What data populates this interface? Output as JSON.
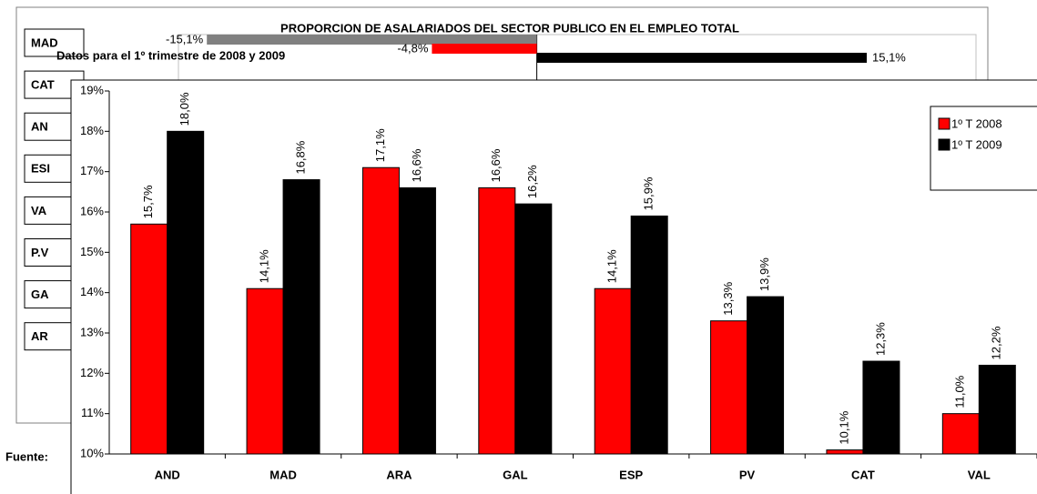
{
  "chart_data": [
    {
      "type": "hbar",
      "title": "PROPORCION DE ASALARIADOS DEL SECTOR PUBLICO EN EL EMPLEO TOTAL",
      "subtitle": "Datos para el 1º trimestre de 2008 y 2009",
      "note": "Fuente:",
      "categories": [
        "MAD",
        "CAT",
        "AN",
        "ESI",
        "VA",
        "P.V",
        "GA",
        "AR"
      ],
      "xlim": [
        -16.4,
        20.1
      ],
      "series": [
        {
          "color": "#808080",
          "values": [
            -15.1,
            null,
            null,
            null,
            null,
            null,
            null,
            null
          ],
          "value_labels": [
            "-15,1%",
            null,
            null,
            null,
            null,
            null,
            null,
            null
          ]
        },
        {
          "color": "#ff0000",
          "values": [
            -4.8,
            null,
            null,
            null,
            null,
            null,
            null,
            null
          ],
          "value_labels": [
            "-4,8%",
            null,
            null,
            null,
            null,
            null,
            null,
            null
          ]
        },
        {
          "color": "#000000",
          "values": [
            15.1,
            null,
            null,
            null,
            null,
            null,
            null,
            null
          ],
          "value_labels": [
            "15,1%",
            null,
            null,
            null,
            null,
            null,
            null,
            null
          ]
        }
      ]
    },
    {
      "type": "bar",
      "categories": [
        "AND",
        "MAD",
        "ARA",
        "GAL",
        "ESP",
        "PV",
        "CAT",
        "VAL"
      ],
      "ylim": [
        10,
        19
      ],
      "yticks": [
        {
          "value": 10,
          "label": "10%"
        },
        {
          "value": 11,
          "label": "11%"
        },
        {
          "value": 12,
          "label": "12%"
        },
        {
          "value": 13,
          "label": "13%"
        },
        {
          "value": 14,
          "label": "14%"
        },
        {
          "value": 15,
          "label": "15%"
        },
        {
          "value": 16,
          "label": "16%"
        },
        {
          "value": 17,
          "label": "17%"
        },
        {
          "value": 18,
          "label": "18%"
        },
        {
          "value": 19,
          "label": "19%"
        }
      ],
      "legend": "right",
      "series": [
        {
          "name": "1º T 2008",
          "color": "#ff0000",
          "values": [
            15.7,
            14.1,
            17.1,
            16.6,
            14.1,
            13.3,
            10.1,
            11.0
          ],
          "value_labels": [
            "15,7%",
            "14,1%",
            "17,1%",
            "16,6%",
            "14,1%",
            "13,3%",
            "10,1%",
            "11,0%"
          ]
        },
        {
          "name": "1º T 2009",
          "color": "#000000",
          "values": [
            18.0,
            16.8,
            16.6,
            16.2,
            15.9,
            13.9,
            12.3,
            12.2
          ],
          "value_labels": [
            "18,0%",
            "16,8%",
            "16,6%",
            "16,2%",
            "15,9%",
            "13,9%",
            "12,3%",
            "12,2%"
          ]
        }
      ]
    }
  ]
}
